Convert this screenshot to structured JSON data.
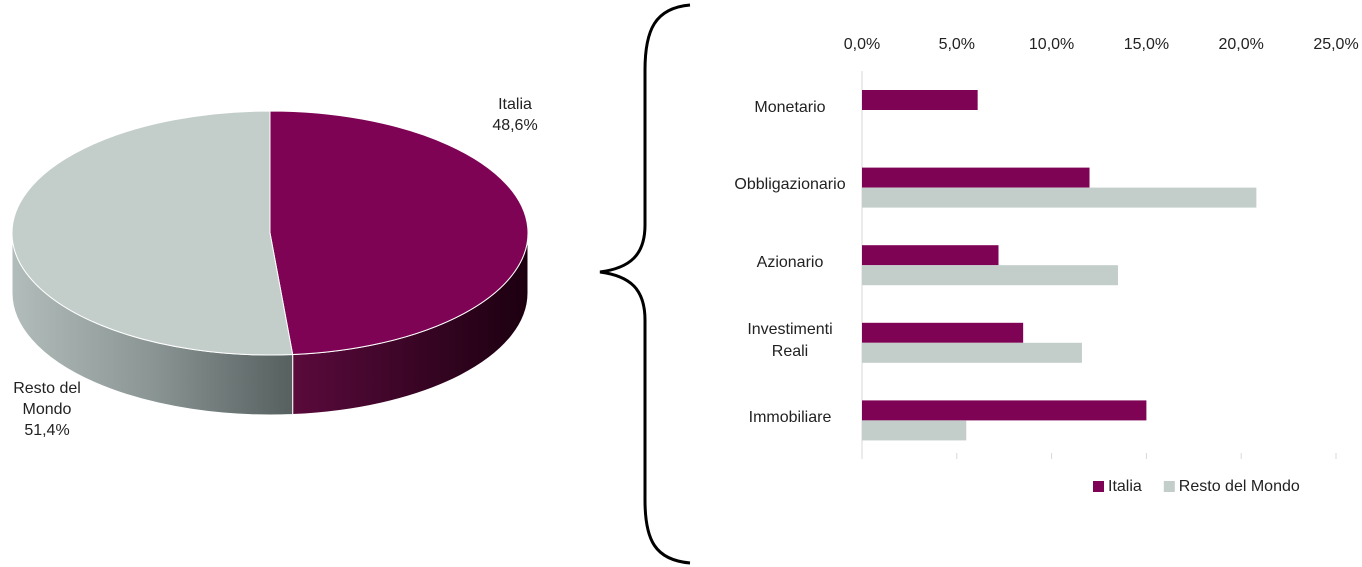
{
  "chart_data": [
    {
      "type": "pie",
      "categories": [
        "Italia",
        "Resto del Mondo"
      ],
      "values": [
        48.6,
        51.4
      ],
      "value_labels": [
        "48,6%",
        "51,4%"
      ],
      "colors": [
        "#7f0355",
        "#c3cdca"
      ]
    },
    {
      "type": "bar",
      "categories": [
        "Monetario",
        "Obbligazionario",
        "Azionario",
        "Investimenti Reali",
        "Immobiliare"
      ],
      "series": [
        {
          "name": "Italia",
          "color": "#7f0355",
          "values": [
            6.1,
            12.0,
            7.2,
            8.5,
            15.0
          ]
        },
        {
          "name": "Resto del Mondo",
          "color": "#c3cdca",
          "values": [
            0,
            20.8,
            13.5,
            11.6,
            5.5
          ]
        }
      ],
      "xlim": [
        0,
        25
      ],
      "xticks": [
        {
          "value": 0,
          "label": "0,0%"
        },
        {
          "value": 5,
          "label": "5,0%"
        },
        {
          "value": 10,
          "label": "10,0%"
        },
        {
          "value": 15,
          "label": "15,0%"
        },
        {
          "value": 20,
          "label": "20,0%"
        },
        {
          "value": 25,
          "label": "25,0%"
        }
      ],
      "legend": "bottom-right"
    }
  ]
}
